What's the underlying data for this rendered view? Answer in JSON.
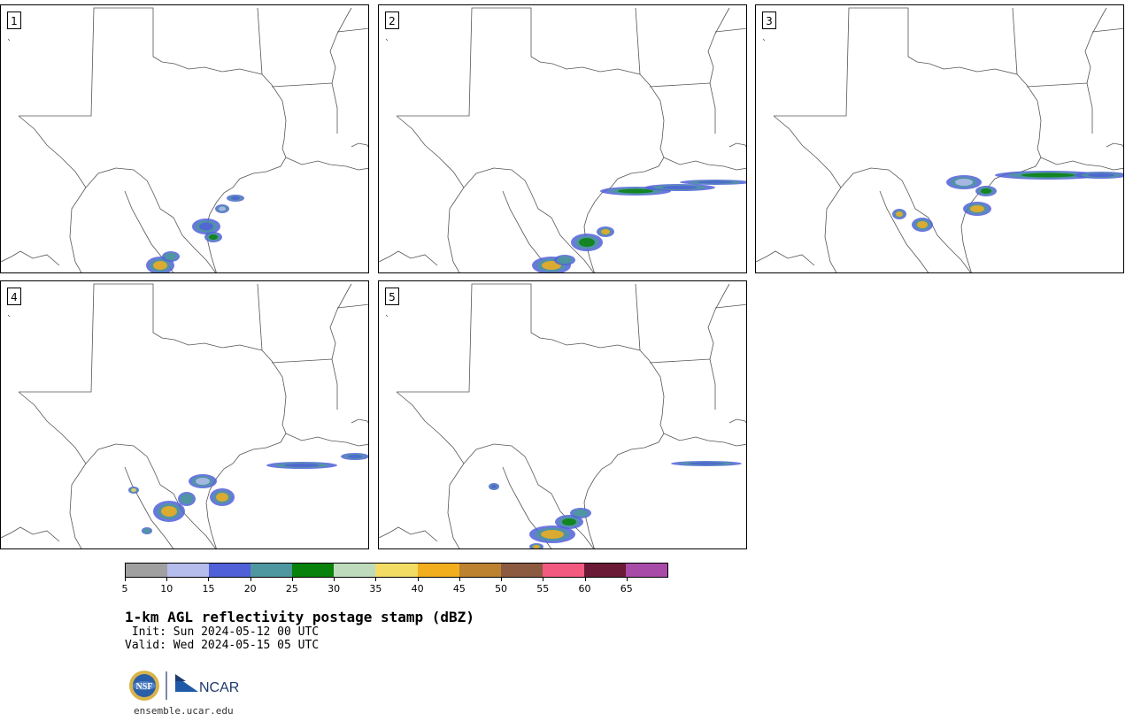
{
  "panels": [
    {
      "label": "1"
    },
    {
      "label": "2"
    },
    {
      "label": "3"
    },
    {
      "label": "4"
    },
    {
      "label": "5"
    }
  ],
  "colorbar": {
    "colors": [
      "#a0a0a0",
      "#b4bdeb",
      "#5060d8",
      "#4e96a0",
      "#08820a",
      "#bedcbc",
      "#f2dc64",
      "#f2ae1c",
      "#bc8230",
      "#8c5a40",
      "#f25a80",
      "#6a1a36",
      "#a84aa8"
    ],
    "ticks": [
      "5",
      "10",
      "15",
      "20",
      "25",
      "30",
      "35",
      "40",
      "45",
      "50",
      "55",
      "60",
      "65"
    ]
  },
  "title": "1-km AGL reflectivity postage stamp (dBZ)",
  "init": " Init: Sun 2024-05-12 00 UTC",
  "valid": "Valid: Wed 2024-05-15 05 UTC",
  "logos": {
    "nsf": "NSF",
    "ncar": "NCAR"
  },
  "url": "ensemble.ucar.edu"
}
